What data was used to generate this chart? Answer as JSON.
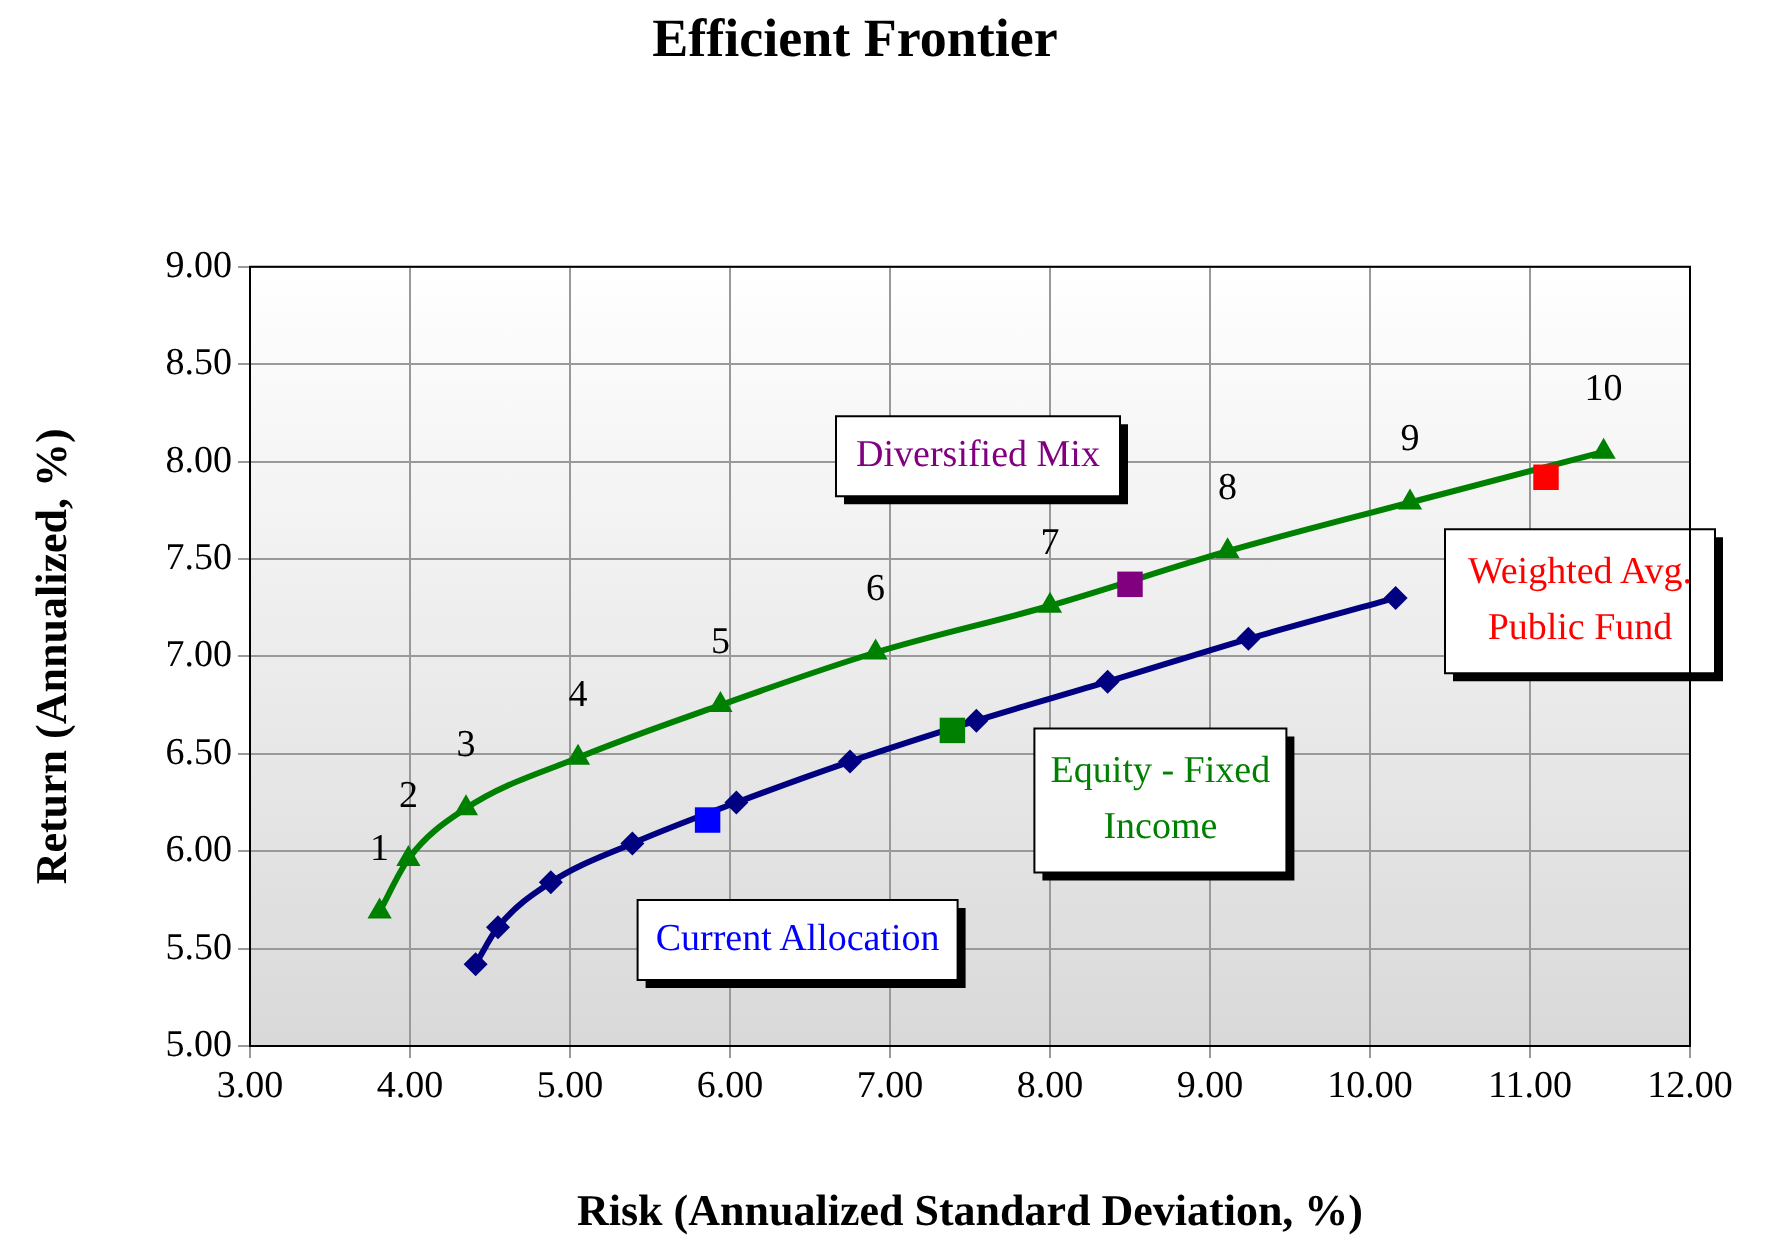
{
  "chart_data": {
    "type": "line",
    "title": "Efficient Frontier",
    "xlabel": "Risk (Annualized Standard Deviation, %)",
    "ylabel": "Return (Annualized, %)",
    "xlim": [
      3,
      12
    ],
    "xticks": [
      {
        "value": 3,
        "label": "3.00"
      },
      {
        "value": 4,
        "label": "4.00"
      },
      {
        "value": 5,
        "label": "5.00"
      },
      {
        "value": 6,
        "label": "6.00"
      },
      {
        "value": 7,
        "label": "7.00"
      },
      {
        "value": 8,
        "label": "8.00"
      },
      {
        "value": 9,
        "label": "9.00"
      },
      {
        "value": 10,
        "label": "10.00"
      },
      {
        "value": 11,
        "label": "11.00"
      },
      {
        "value": 12,
        "label": "12.00"
      }
    ],
    "ylim": [
      5,
      9
    ],
    "yticks": [
      {
        "value": 5,
        "label": "5.00"
      },
      {
        "value": 5.5,
        "label": "5.50"
      },
      {
        "value": 6,
        "label": "6.00"
      },
      {
        "value": 6.5,
        "label": "6.50"
      },
      {
        "value": 7,
        "label": "7.00"
      },
      {
        "value": 7.5,
        "label": "7.50"
      },
      {
        "value": 8,
        "label": "8.00"
      },
      {
        "value": 8.5,
        "label": "8.50"
      },
      {
        "value": 9,
        "label": "9.00"
      }
    ],
    "grid": true,
    "legend": false,
    "annotations": [
      {
        "text": "1",
        "x": 3.81,
        "y": 5.69
      },
      {
        "text": "2",
        "x": 3.99,
        "y": 5.96
      },
      {
        "text": "3",
        "x": 4.35,
        "y": 6.22
      },
      {
        "text": "4",
        "x": 5.05,
        "y": 6.48
      },
      {
        "text": "5",
        "x": 5.94,
        "y": 6.75
      },
      {
        "text": "6",
        "x": 6.91,
        "y": 7.02
      },
      {
        "text": "7",
        "x": 8.0,
        "y": 7.26
      },
      {
        "text": "8",
        "x": 9.11,
        "y": 7.54
      },
      {
        "text": "9",
        "x": 10.25,
        "y": 7.79
      },
      {
        "text": "10",
        "x": 11.46,
        "y": 8.05
      }
    ],
    "series": [
      {
        "color": "#008000",
        "marker": "triangle",
        "x": [
          3.81,
          3.99,
          4.35,
          5.05,
          5.94,
          6.91,
          8.0,
          9.11,
          10.25,
          11.46
        ],
        "values": [
          5.69,
          5.96,
          6.22,
          6.48,
          6.75,
          7.02,
          7.26,
          7.54,
          7.79,
          8.05
        ]
      },
      {
        "color": "#000080",
        "marker": "diamond",
        "x": [
          4.41,
          4.55,
          4.88,
          5.39,
          6.04,
          6.75,
          7.54,
          8.36,
          9.24,
          10.16
        ],
        "values": [
          5.42,
          5.61,
          5.84,
          6.04,
          6.25,
          6.46,
          6.67,
          6.87,
          7.09,
          7.3
        ]
      },
      {
        "type": "scatter",
        "name": "Current Allocation",
        "color": "#0000ff",
        "marker": "square",
        "x": [
          5.86
        ],
        "values": [
          6.16
        ]
      },
      {
        "type": "scatter",
        "name": "Equity - Fixed Income",
        "color": "#008000",
        "marker": "square",
        "x": [
          7.39
        ],
        "values": [
          6.62
        ]
      },
      {
        "type": "scatter",
        "name": "Diversified Mix",
        "color": "#800080",
        "marker": "square",
        "x": [
          8.5
        ],
        "values": [
          7.37
        ]
      },
      {
        "type": "scatter",
        "name": "Weighted Avg. Public Fund",
        "color": "#ff0000",
        "marker": "square",
        "x": [
          11.1
        ],
        "values": [
          7.92
        ]
      }
    ]
  }
}
